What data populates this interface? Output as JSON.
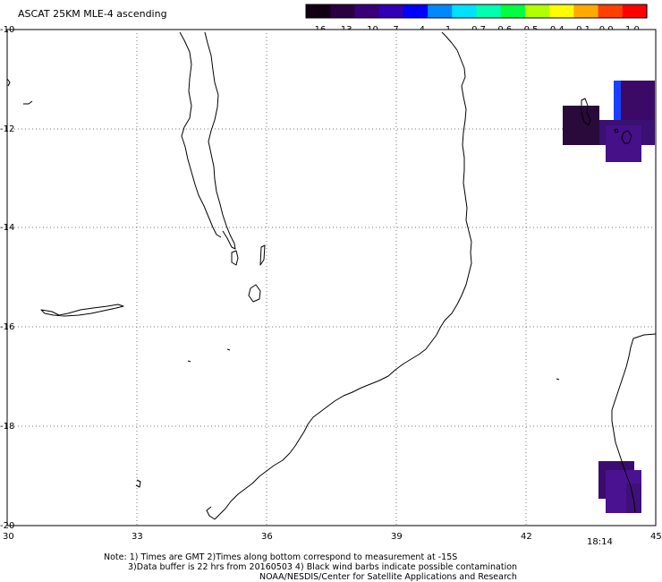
{
  "title": "ASCAT 25KM MLE-4 ascending",
  "colorbar": {
    "labels": [
      "-16",
      "-13",
      "-10",
      "-7",
      "-4",
      "-1",
      "-0.7",
      "-0.6",
      "-0.5",
      "-0.4",
      "-0.1",
      "0.0",
      "1.0"
    ],
    "colors": [
      "#120012",
      "#2a0040",
      "#3a0078",
      "#3200b4",
      "#0000ff",
      "#0088ff",
      "#00e0ff",
      "#00ffb0",
      "#00ff40",
      "#b0ff00",
      "#ffff00",
      "#ffaa00",
      "#ff4000",
      "#ff0000"
    ]
  },
  "axes": {
    "lat_labels": [
      "-10",
      "-12",
      "-14",
      "-16",
      "-18",
      "-20"
    ],
    "lon_labels": [
      "30",
      "33",
      "36",
      "39",
      "42",
      "45"
    ]
  },
  "timestamp": "18:14",
  "timestamp_color": "#cc0000",
  "notes": {
    "line1": "Note: 1) Times are GMT 2)Times along bottom correspond to measurement at -15S",
    "line2": "3)Data buffer is 22 hrs from 20160503 4) Black wind barbs indicate possible contamination",
    "line3": "NOAA/NESDIS/Center for Satellite Applications and Research"
  },
  "data_patch_colors": [
    "#2a0a3a",
    "#3a0a66",
    "#1c40ff",
    "#3a1070",
    "#451088",
    "#3b0c6e",
    "#4a1290",
    "#40107a"
  ]
}
